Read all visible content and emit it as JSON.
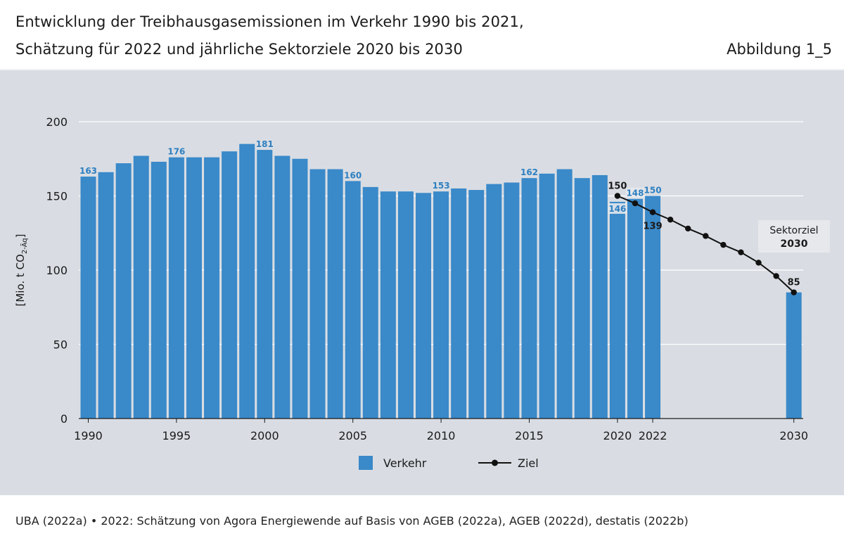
{
  "header": {
    "title_line1": "Entwicklung der Treibhausgasemissionen im Verkehr 1990 bis 2021,",
    "title_line2": "Schätzung für 2022 und jährliche Sektorziele 2020 bis 2030",
    "figure_label": "Abbildung 1_5"
  },
  "footer": {
    "source": "UBA (2022a) • 2022: Schätzung von Agora Energiewende auf Basis von AGEB (2022a), AGEB (2022d), destatis (2022b)"
  },
  "colors": {
    "bar": "#3a89c9",
    "bar_label": "#2e7fc0",
    "target_line": "#111111",
    "panel": "#d9dde3",
    "grid": "#ffffff",
    "callout_bg": "#e6e8ec"
  },
  "chart_data": {
    "type": "bar",
    "ylabel_main": "[Mio. t CO",
    "ylabel_sub": "2-Äq",
    "ylabel_end": "]",
    "ylim": [
      0,
      200
    ],
    "yticks": [
      0,
      50,
      100,
      150,
      200
    ],
    "xticks": [
      "1990",
      "1995",
      "2000",
      "2005",
      "2010",
      "2015",
      "2020",
      "2022",
      "2030"
    ],
    "grid": true,
    "legend_position": "bottom",
    "series": [
      {
        "name": "Verkehr",
        "type": "bar",
        "x": [
          1990,
          1991,
          1992,
          1993,
          1994,
          1995,
          1996,
          1997,
          1998,
          1999,
          2000,
          2001,
          2002,
          2003,
          2004,
          2005,
          2006,
          2007,
          2008,
          2009,
          2010,
          2011,
          2012,
          2013,
          2014,
          2015,
          2016,
          2017,
          2018,
          2019,
          2020,
          2021,
          2022,
          2030
        ],
        "values": [
          163,
          166,
          172,
          177,
          173,
          176,
          176,
          176,
          180,
          185,
          181,
          177,
          175,
          168,
          168,
          160,
          156,
          153,
          153,
          152,
          153,
          155,
          154,
          158,
          159,
          162,
          165,
          168,
          162,
          164,
          146,
          148,
          150,
          85
        ]
      },
      {
        "name": "Ziel",
        "type": "line",
        "x": [
          2020,
          2021,
          2022,
          2023,
          2024,
          2025,
          2026,
          2027,
          2028,
          2029,
          2030
        ],
        "values": [
          150,
          145,
          139,
          134,
          128,
          123,
          117,
          112,
          105,
          96,
          85
        ]
      }
    ],
    "bar_data_labels": [
      {
        "x": 1990,
        "text": "163"
      },
      {
        "x": 1995,
        "text": "176"
      },
      {
        "x": 2000,
        "text": "181"
      },
      {
        "x": 2005,
        "text": "160"
      },
      {
        "x": 2010,
        "text": "153"
      },
      {
        "x": 2015,
        "text": "162"
      },
      {
        "x": 2020,
        "text": "146"
      },
      {
        "x": 2021,
        "text": "148"
      },
      {
        "x": 2022,
        "text": "150"
      }
    ],
    "target_data_labels": [
      {
        "x": 2020,
        "text": "150",
        "pos": "above"
      },
      {
        "x": 2022,
        "text": "139",
        "pos": "below"
      },
      {
        "x": 2030,
        "text": "85",
        "pos": "above"
      }
    ],
    "callout": {
      "line1": "Sektorziel",
      "line2": "2030"
    }
  }
}
